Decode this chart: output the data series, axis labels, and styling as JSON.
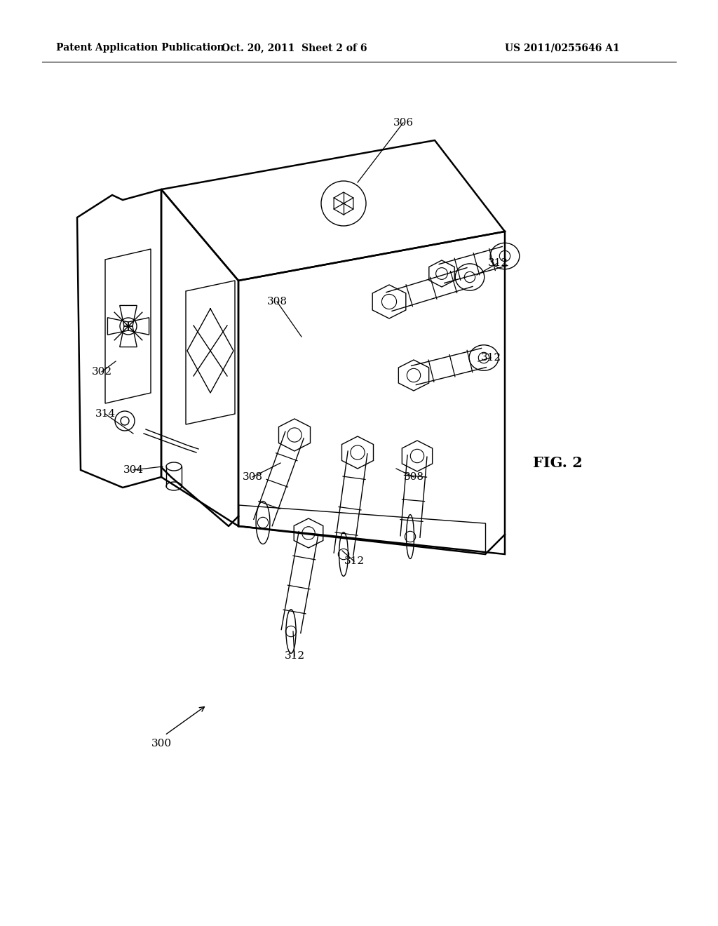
{
  "title_left": "Patent Application Publication",
  "title_center": "Oct. 20, 2011  Sheet 2 of 6",
  "title_right": "US 2011/0255646 A1",
  "fig_label": "FIG. 2",
  "background_color": "#ffffff",
  "line_color": "#000000",
  "lw_main": 1.8,
  "lw_thin": 1.0,
  "lw_bold": 2.2,
  "header_fontsize": 10,
  "label_fontsize": 11,
  "fig_fontsize": 15
}
